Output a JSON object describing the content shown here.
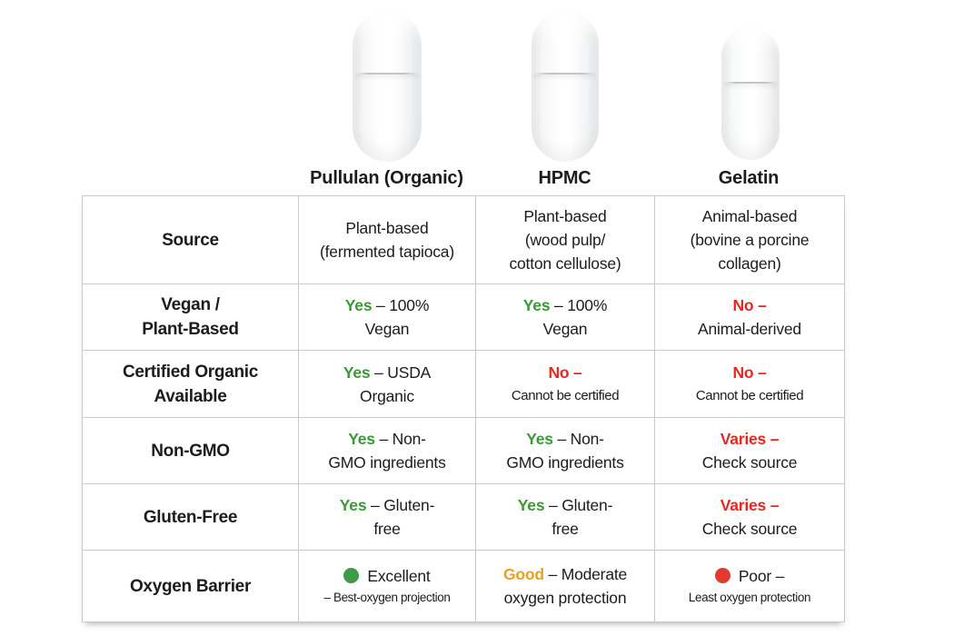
{
  "colors": {
    "green": "#3a9a35",
    "red": "#e8281e",
    "amber": "#e9a11c",
    "green_dot": "#3f9b47",
    "red_dot": "#e13a2f",
    "text": "#1c1c1a",
    "border": "#c9c9c9"
  },
  "columns": [
    "Pullulan (Organic)",
    "HPMC",
    "Gelatin"
  ],
  "capsule_icons": [
    "pullulan-capsule",
    "hpmc-capsule",
    "gelatin-capsule"
  ],
  "rows": {
    "source": {
      "label": "Source",
      "pullulan": {
        "line1": "Plant-based",
        "line2": "(fermented tapioca)"
      },
      "hpmc": {
        "line1": "Plant-based",
        "line2": "(wood pulp/",
        "line3": "cotton cellulose)"
      },
      "gelatin": {
        "line1": "Animal-based",
        "line2": "(bovine a porcine",
        "line3": "collagen)"
      }
    },
    "vegan": {
      "label1": "Vegan /",
      "label2": "Plant-Based",
      "pullulan": {
        "status": "Yes",
        "rest": "– 100%",
        "line2": "Vegan"
      },
      "hpmc": {
        "status": "Yes",
        "rest": "– 100%",
        "line2": "Vegan"
      },
      "gelatin": {
        "status": "No –",
        "line2": "Animal-derived"
      }
    },
    "organic": {
      "label1": "Certified Organic",
      "label2": "Available",
      "pullulan": {
        "status": "Yes",
        "rest": "– USDA",
        "line2": "Organic"
      },
      "hpmc": {
        "status": "No –",
        "line2": "Cannot be certified"
      },
      "gelatin": {
        "status": "No –",
        "line2": "Cannot be certified"
      }
    },
    "non_gmo": {
      "label": "Non-GMO",
      "pullulan": {
        "status": "Yes",
        "rest": "– Non-",
        "line2": "GMO ingredients"
      },
      "hpmc": {
        "status": "Yes",
        "rest": "– Non-",
        "line2": "GMO ingredients"
      },
      "gelatin": {
        "status": "Varies –",
        "line2": "Check source"
      }
    },
    "gluten": {
      "label": "Gluten-Free",
      "pullulan": {
        "status": "Yes",
        "rest": "– Gluten-",
        "line2": "free"
      },
      "hpmc": {
        "status": "Yes",
        "rest": "– Gluten-",
        "line2": "free"
      },
      "gelatin": {
        "status": "Varies –",
        "line2": "Check source"
      }
    },
    "oxygen": {
      "label": "Oxygen Barrier",
      "pullulan": {
        "dot": "green",
        "status": "Excellent",
        "line2": "– Best-oxygen projection"
      },
      "hpmc": {
        "status": "Good",
        "rest": "– Moderate",
        "line2": "oxygen protection"
      },
      "gelatin": {
        "dot": "red",
        "status": "Poor –",
        "line2": "Least oxygen protection"
      }
    }
  }
}
